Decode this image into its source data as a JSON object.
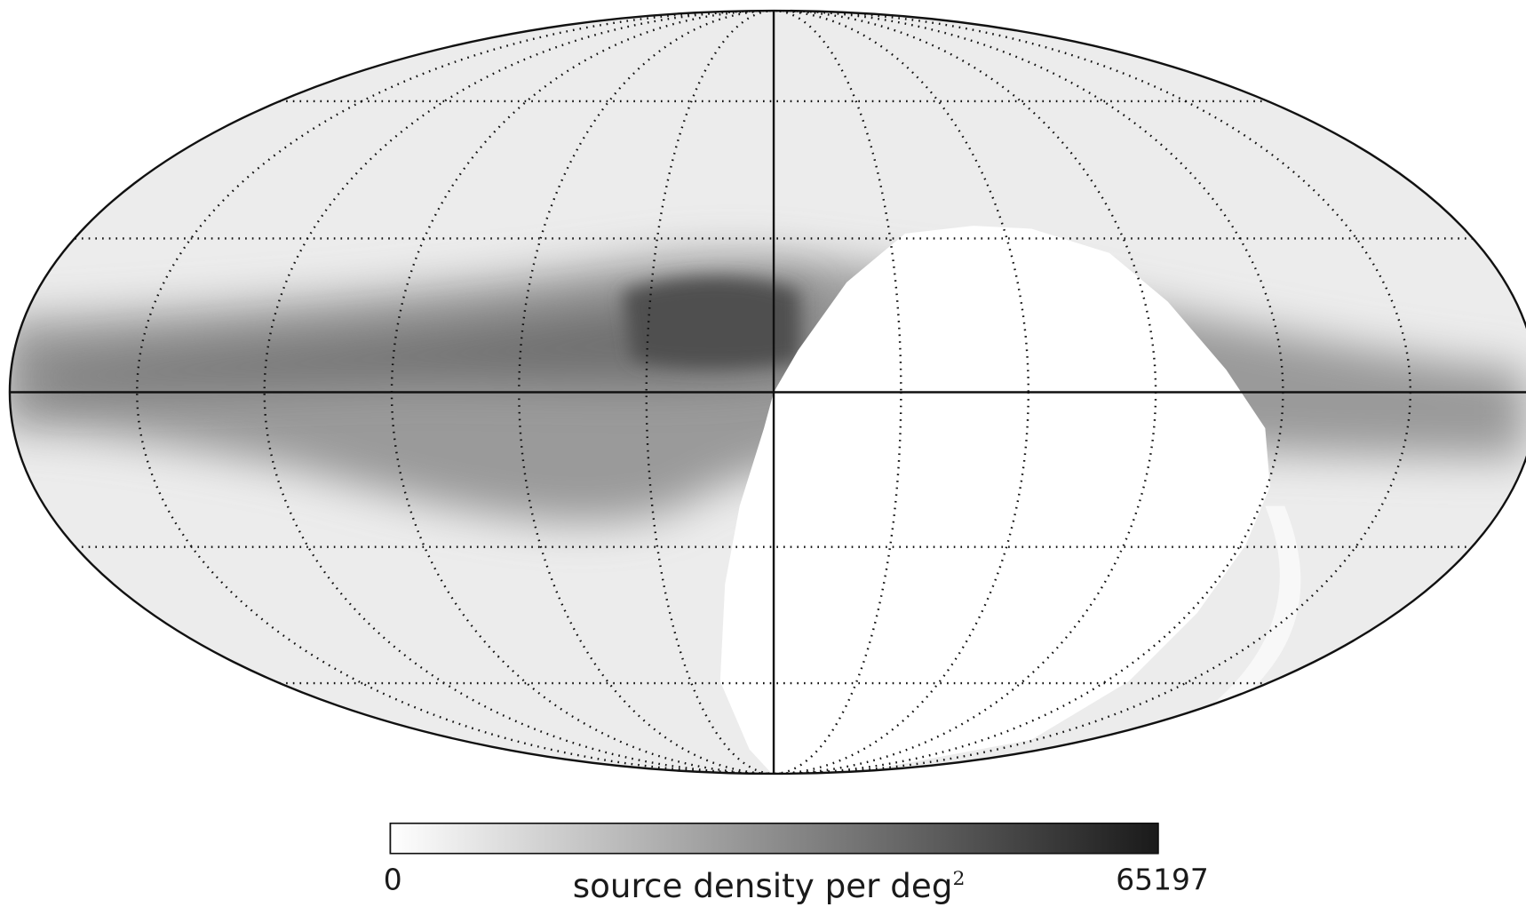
{
  "chart_data": {
    "type": "map",
    "colorbar": {
      "label": "source density per deg",
      "label_sup": "2",
      "lim": [
        0,
        65197
      ],
      "ticks": [
        0,
        65197
      ],
      "colors": [
        "#ffffff",
        "#1a1a1a"
      ]
    }
  }
}
